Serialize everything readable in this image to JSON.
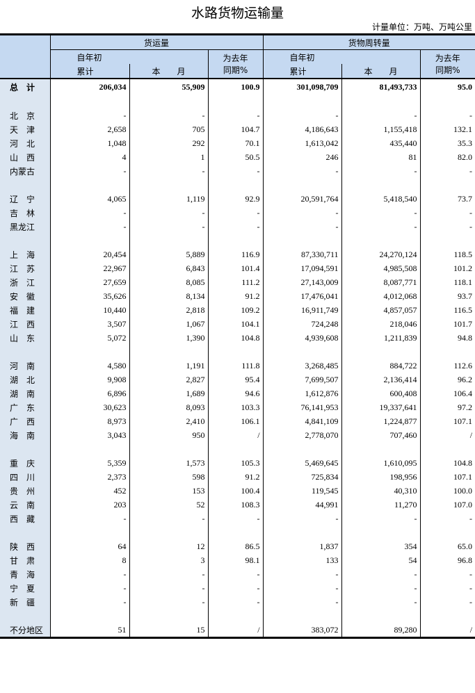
{
  "title": "水路货物运输量",
  "unit": "计量单位：万吨、万吨公里",
  "header": {
    "freight": "货运量",
    "turnover": "货物周转量",
    "ytd_top": "自年初",
    "ytd_bottom": "累计",
    "month": "本　　月",
    "yoy_top": "为去年",
    "yoy_bottom": "同期%"
  },
  "rows": [
    {
      "region": "总　计",
      "v": [
        "206,034",
        "55,909",
        "100.9",
        "301,098,709",
        "81,493,733",
        "95.0"
      ],
      "total": true
    },
    {
      "region": "",
      "v": [
        "",
        "",
        "",
        "",
        "",
        ""
      ]
    },
    {
      "region": "北　京",
      "v": [
        "-",
        "-",
        "-",
        "-",
        "-",
        "-"
      ]
    },
    {
      "region": "天　津",
      "v": [
        "2,658",
        "705",
        "104.7",
        "4,186,643",
        "1,155,418",
        "132.1"
      ]
    },
    {
      "region": "河　北",
      "v": [
        "1,048",
        "292",
        "70.1",
        "1,613,042",
        "435,440",
        "35.3"
      ]
    },
    {
      "region": "山　西",
      "v": [
        "4",
        "1",
        "50.5",
        "246",
        "81",
        "82.0"
      ]
    },
    {
      "region": "内蒙古",
      "v": [
        "-",
        "-",
        "-",
        "-",
        "-",
        "-"
      ]
    },
    {
      "region": "",
      "v": [
        "",
        "",
        "",
        "",
        "",
        ""
      ]
    },
    {
      "region": "辽　宁",
      "v": [
        "4,065",
        "1,119",
        "92.9",
        "20,591,764",
        "5,418,540",
        "73.7"
      ]
    },
    {
      "region": "吉　林",
      "v": [
        "-",
        "-",
        "-",
        "-",
        "-",
        "-"
      ]
    },
    {
      "region": "黑龙江",
      "v": [
        "-",
        "-",
        "-",
        "-",
        "-",
        "-"
      ]
    },
    {
      "region": "",
      "v": [
        "",
        "",
        "",
        "",
        "",
        ""
      ]
    },
    {
      "region": "上　海",
      "v": [
        "20,454",
        "5,889",
        "116.9",
        "87,330,711",
        "24,270,124",
        "118.5"
      ]
    },
    {
      "region": "江　苏",
      "v": [
        "22,967",
        "6,843",
        "101.4",
        "17,094,591",
        "4,985,508",
        "101.2"
      ]
    },
    {
      "region": "浙　江",
      "v": [
        "27,659",
        "8,085",
        "111.2",
        "27,143,009",
        "8,087,771",
        "118.1"
      ]
    },
    {
      "region": "安　徽",
      "v": [
        "35,626",
        "8,134",
        "91.2",
        "17,476,041",
        "4,012,068",
        "93.7"
      ]
    },
    {
      "region": "福　建",
      "v": [
        "10,440",
        "2,818",
        "109.2",
        "16,911,749",
        "4,857,057",
        "116.5"
      ]
    },
    {
      "region": "江　西",
      "v": [
        "3,507",
        "1,067",
        "104.1",
        "724,248",
        "218,046",
        "101.7"
      ]
    },
    {
      "region": "山　东",
      "v": [
        "5,072",
        "1,390",
        "104.8",
        "4,939,608",
        "1,211,839",
        "94.8"
      ]
    },
    {
      "region": "",
      "v": [
        "",
        "",
        "",
        "",
        "",
        ""
      ]
    },
    {
      "region": "河　南",
      "v": [
        "4,580",
        "1,191",
        "111.8",
        "3,268,485",
        "884,722",
        "112.6"
      ]
    },
    {
      "region": "湖　北",
      "v": [
        "9,908",
        "2,827",
        "95.4",
        "7,699,507",
        "2,136,414",
        "96.2"
      ]
    },
    {
      "region": "湖　南",
      "v": [
        "6,896",
        "1,689",
        "94.6",
        "1,612,876",
        "600,408",
        "106.4"
      ]
    },
    {
      "region": "广　东",
      "v": [
        "30,623",
        "8,093",
        "103.3",
        "76,141,953",
        "19,337,641",
        "97.2"
      ]
    },
    {
      "region": "广　西",
      "v": [
        "8,973",
        "2,410",
        "106.1",
        "4,841,109",
        "1,224,877",
        "107.1"
      ]
    },
    {
      "region": "海　南",
      "v": [
        "3,043",
        "950",
        "/",
        "2,778,070",
        "707,460",
        "/"
      ]
    },
    {
      "region": "",
      "v": [
        "",
        "",
        "",
        "",
        "",
        ""
      ]
    },
    {
      "region": "重　庆",
      "v": [
        "5,359",
        "1,573",
        "105.3",
        "5,469,645",
        "1,610,095",
        "104.8"
      ]
    },
    {
      "region": "四　川",
      "v": [
        "2,373",
        "598",
        "91.2",
        "725,834",
        "198,956",
        "107.1"
      ]
    },
    {
      "region": "贵　州",
      "v": [
        "452",
        "153",
        "100.4",
        "119,545",
        "40,310",
        "100.0"
      ]
    },
    {
      "region": "云　南",
      "v": [
        "203",
        "52",
        "108.3",
        "44,991",
        "11,270",
        "107.0"
      ]
    },
    {
      "region": "西　藏",
      "v": [
        "-",
        "-",
        "-",
        "-",
        "-",
        "-"
      ]
    },
    {
      "region": "",
      "v": [
        "",
        "",
        "",
        "",
        "",
        ""
      ]
    },
    {
      "region": "陕　西",
      "v": [
        "64",
        "12",
        "86.5",
        "1,837",
        "354",
        "65.0"
      ]
    },
    {
      "region": "甘　肃",
      "v": [
        "8",
        "3",
        "98.1",
        "133",
        "54",
        "96.8"
      ]
    },
    {
      "region": "青　海",
      "v": [
        "-",
        "-",
        "-",
        "-",
        "-",
        "-"
      ]
    },
    {
      "region": "宁　夏",
      "v": [
        "-",
        "-",
        "-",
        "-",
        "-",
        "-"
      ]
    },
    {
      "region": "新　疆",
      "v": [
        "-",
        "-",
        "-",
        "-",
        "-",
        "-"
      ]
    },
    {
      "region": "",
      "v": [
        "",
        "",
        "",
        "",
        "",
        ""
      ]
    },
    {
      "region": "不分地区",
      "v": [
        "51",
        "15",
        "/",
        "383,072",
        "89,280",
        "/"
      ]
    }
  ]
}
